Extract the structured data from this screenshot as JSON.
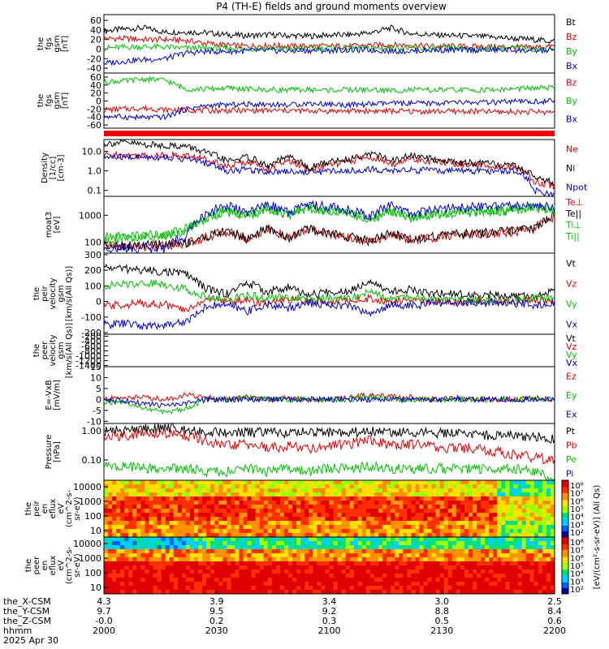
{
  "title": "P4 (TH-E) fields and ground moments overview",
  "chart_data": [
    {
      "type": "line",
      "ylabel": [
        "the",
        "fgs",
        "gsm",
        "[nT]"
      ],
      "yticks": [
        "60",
        "40",
        "20",
        "0",
        "-20",
        "-40"
      ],
      "ylim": [
        -50,
        72
      ],
      "series": [
        {
          "name": "Bt",
          "color": "#000000",
          "values": [
            38,
            42,
            44,
            35,
            36,
            34,
            30,
            28,
            30,
            28,
            27,
            29,
            30,
            34,
            44,
            32,
            30,
            28,
            27,
            25,
            22,
            20,
            16
          ]
        },
        {
          "name": "Bz",
          "color": "#e00000",
          "values": [
            22,
            22,
            20,
            20,
            18,
            12,
            8,
            6,
            8,
            6,
            6,
            6,
            6,
            8,
            9,
            8,
            6,
            6,
            5,
            5,
            4,
            4,
            6
          ]
        },
        {
          "name": "By",
          "color": "#00c000",
          "values": [
            2,
            4,
            5,
            4,
            2,
            2,
            2,
            0,
            2,
            0,
            2,
            2,
            2,
            2,
            2,
            2,
            0,
            2,
            0,
            2,
            2,
            0,
            2
          ]
        },
        {
          "name": "Bx",
          "color": "#0000d0",
          "values": [
            -30,
            -25,
            -22,
            -20,
            -8,
            -5,
            -5,
            -4,
            -3,
            -4,
            -3,
            -3,
            -2,
            -2,
            -4,
            -4,
            -2,
            -2,
            -2,
            -2,
            -2,
            -4,
            -2
          ]
        }
      ]
    },
    {
      "type": "line",
      "ylabel": [
        "the",
        "fgs",
        "gsm",
        "[nT]"
      ],
      "yticks": [
        "60",
        "40",
        "20",
        "0",
        "-20",
        "-40",
        "-60"
      ],
      "ylim": [
        -68,
        70
      ],
      "series": [
        {
          "name": "Bz",
          "color": "#e00000",
          "values": [
            -22,
            -20,
            -18,
            -22,
            -22,
            -24,
            -24,
            -24,
            -24,
            -24,
            -25,
            -25,
            -25,
            -25,
            -25,
            -26,
            -26,
            -26,
            -26,
            -27,
            -27,
            -27,
            -28
          ]
        },
        {
          "name": "By",
          "color": "#00c000",
          "values": [
            48,
            50,
            55,
            52,
            30,
            30,
            32,
            30,
            28,
            28,
            28,
            27,
            28,
            28,
            26,
            28,
            27,
            28,
            27,
            28,
            30,
            32,
            33
          ]
        },
        {
          "name": "Bx",
          "color": "#0000d0",
          "values": [
            -38,
            -40,
            -42,
            -40,
            -20,
            -12,
            -10,
            -8,
            -8,
            -10,
            -6,
            -8,
            -10,
            -8,
            -6,
            -6,
            -6,
            -4,
            -4,
            -4,
            -2,
            -2,
            0
          ]
        }
      ]
    },
    {
      "type": "line",
      "log": true,
      "ylabel": [
        "Density",
        "[1/cc]",
        "[cm-3]"
      ],
      "yticks": [
        "10.0",
        "1.0",
        "0.1"
      ],
      "ylim": [
        0.05,
        40
      ],
      "series": [
        {
          "name": "Ne",
          "color": "#e00000",
          "values": [
            6.5,
            6.5,
            6,
            6.5,
            6,
            4,
            1.5,
            3,
            1.2,
            3,
            1,
            2,
            3,
            5,
            2,
            4,
            3,
            2.5,
            2,
            1.8,
            1.5,
            0.3,
            0.15
          ]
        },
        {
          "name": "Ni",
          "color": "#000000",
          "values": [
            25,
            28,
            22,
            20,
            18,
            8,
            3,
            5,
            1.5,
            5,
            1.2,
            3,
            4,
            8,
            3,
            6,
            4,
            3,
            2.5,
            2.2,
            1.8,
            0.5,
            0.2
          ]
        },
        {
          "name": "Npot",
          "color": "#0000d0",
          "values": [
            5,
            5,
            5,
            5,
            4,
            2.5,
            1,
            1.2,
            0.9,
            1,
            0.8,
            1,
            1,
            1.2,
            1,
            1.1,
            1,
            1,
            1,
            1,
            1,
            0.1,
            0.05
          ]
        }
      ]
    },
    {
      "type": "line",
      "log": true,
      "ylabel": [
        "moat3",
        "[eV]"
      ],
      "yticks": [
        "1000",
        "100"
      ],
      "ylim": [
        40,
        5000
      ],
      "series": [
        {
          "name": "Te⊥",
          "color": "#e00000",
          "values": [
            80,
            70,
            70,
            80,
            90,
            150,
            250,
            120,
            300,
            130,
            300,
            200,
            150,
            100,
            200,
            120,
            150,
            180,
            200,
            220,
            250,
            300,
            900
          ]
        },
        {
          "name": "Te||",
          "color": "#000000",
          "values": [
            85,
            75,
            75,
            85,
            95,
            160,
            260,
            130,
            310,
            140,
            310,
            210,
            160,
            110,
            210,
            130,
            160,
            190,
            210,
            230,
            260,
            320,
            950
          ]
        },
        {
          "name": "Ti⊥",
          "color": "#00c000",
          "values": [
            150,
            170,
            190,
            200,
            300,
            800,
            1500,
            900,
            1800,
            1000,
            2000,
            1500,
            1200,
            700,
            1500,
            900,
            1100,
            1300,
            1400,
            1500,
            1600,
            2000,
            1500
          ]
        },
        {
          "name": "Ti||",
          "color": "#00c000",
          "values": [
            120,
            140,
            160,
            170,
            250,
            700,
            1400,
            800,
            1700,
            900,
            1900,
            1400,
            1100,
            600,
            1400,
            800,
            1000,
            1200,
            1300,
            1400,
            1500,
            1900,
            1400
          ]
        },
        {
          "name": "",
          "color": "#0000d0",
          "values": [
            60,
            60,
            60,
            60,
            150,
            1000,
            2300,
            1100,
            2500,
            1200,
            2600,
            2000,
            1500,
            900,
            2200,
            1100,
            1500,
            1800,
            2000,
            2200,
            2300,
            2500,
            2000
          ]
        }
      ]
    },
    {
      "type": "line",
      "ylabel": [
        "the",
        "peir",
        "velocity",
        "gsm",
        "[km/s(All Qs)]"
      ],
      "yticks": [
        "300",
        "200",
        "100",
        "0",
        "-100",
        "-200"
      ],
      "ylim": [
        -210,
        310
      ],
      "series": [
        {
          "name": "Vt",
          "color": "#000000",
          "values": [
            220,
            210,
            200,
            190,
            180,
            80,
            50,
            120,
            60,
            90,
            40,
            60,
            70,
            140,
            60,
            80,
            50,
            50,
            40,
            40,
            30,
            40,
            60
          ]
        },
        {
          "name": "Vz",
          "color": "#e00000",
          "values": [
            -30,
            -20,
            -10,
            -20,
            -60,
            20,
            0,
            10,
            -20,
            10,
            0,
            0,
            10,
            20,
            0,
            10,
            0,
            0,
            0,
            0,
            0,
            10,
            0
          ]
        },
        {
          "name": "Vy",
          "color": "#00c000",
          "values": [
            100,
            110,
            120,
            110,
            80,
            30,
            10,
            40,
            20,
            30,
            10,
            20,
            20,
            60,
            20,
            30,
            10,
            10,
            10,
            10,
            10,
            20,
            20
          ]
        },
        {
          "name": "Vx",
          "color": "#0000d0",
          "values": [
            -150,
            -140,
            -160,
            -150,
            -130,
            -30,
            -20,
            -60,
            -20,
            -40,
            -10,
            -20,
            -30,
            -80,
            -20,
            -30,
            -10,
            -10,
            -10,
            -10,
            -10,
            -20,
            -20
          ]
        }
      ]
    },
    {
      "type": "line",
      "ylabel": [
        "the",
        "peer",
        "velocity",
        "gsm",
        "[km/s(All Qs)]"
      ],
      "yticks": [
        "-200",
        "-400",
        "-600",
        "-800",
        "-1000",
        "-1200",
        "-1400"
      ],
      "ylim": [
        -1450,
        -120
      ],
      "series": [
        {
          "name": "Vt",
          "color": "#000000",
          "values": []
        },
        {
          "name": "Vz",
          "color": "#e00000",
          "values": []
        },
        {
          "name": "Vy",
          "color": "#00c000",
          "values": []
        },
        {
          "name": "Vx",
          "color": "#0000d0",
          "values": []
        }
      ]
    },
    {
      "type": "line",
      "ylabel": [
        "E=-VxB",
        "[mV/m]"
      ],
      "yticks": [
        "15",
        "10",
        "5",
        "0",
        "-5",
        "-10"
      ],
      "ylim": [
        -11,
        15
      ],
      "series": [
        {
          "name": "Ez",
          "color": "#e00000",
          "values": [
            0,
            1,
            1,
            0,
            2,
            1,
            0,
            1,
            0,
            1,
            0,
            0,
            1,
            2,
            1,
            1,
            0,
            1,
            0,
            0,
            0,
            1,
            0
          ]
        },
        {
          "name": "Ey",
          "color": "#00c000",
          "values": [
            -1,
            -2,
            -4,
            -6,
            -4,
            0,
            0,
            1,
            0,
            0,
            0,
            0,
            0,
            1,
            0,
            0,
            0,
            0,
            0,
            0,
            0,
            0,
            0
          ]
        },
        {
          "name": "Ex",
          "color": "#0000d0",
          "values": [
            0,
            -1,
            -2,
            -3,
            -2,
            0,
            0,
            0,
            0,
            0,
            0,
            0,
            0,
            0,
            0,
            0,
            0,
            0,
            0,
            0,
            0,
            0,
            0
          ]
        }
      ]
    },
    {
      "type": "line",
      "log": true,
      "ylabel": [
        "Pressure",
        "[nPa]"
      ],
      "yticks": [
        "1.00",
        "0.10"
      ],
      "ylim": [
        0.02,
        1.8
      ],
      "series": [
        {
          "name": "Pt",
          "color": "#000000",
          "values": [
            1.0,
            1.0,
            1.2,
            1.3,
            1.2,
            0.9,
            0.9,
            0.85,
            0.9,
            0.85,
            0.9,
            0.9,
            0.9,
            1.0,
            0.9,
            0.9,
            0.85,
            0.8,
            0.75,
            0.7,
            0.65,
            0.6,
            0.55
          ]
        },
        {
          "name": "Pb",
          "color": "#e00000",
          "values": [
            0.6,
            0.7,
            0.8,
            0.8,
            0.7,
            0.4,
            0.3,
            0.35,
            0.25,
            0.3,
            0.25,
            0.3,
            0.35,
            0.5,
            0.3,
            0.35,
            0.3,
            0.25,
            0.25,
            0.2,
            0.15,
            0.12,
            0.1
          ]
        },
        {
          "name": "Pe",
          "color": "#00c000",
          "values": [
            0.06,
            0.06,
            0.05,
            0.05,
            0.05,
            0.04,
            0.04,
            0.05,
            0.04,
            0.05,
            0.04,
            0.05,
            0.05,
            0.06,
            0.05,
            0.05,
            0.05,
            0.05,
            0.05,
            0.05,
            0.05,
            0.04,
            0.02
          ]
        },
        {
          "name": "Pi",
          "color": "#0000d0",
          "values": []
        }
      ]
    },
    {
      "type": "heatmap",
      "ylabel": [
        "the",
        "peir",
        "en",
        "eflux",
        "eV",
        "(cm^2-s-",
        "sr-eV)"
      ],
      "yticks": [
        "10000",
        "1000",
        "100",
        "10"
      ]
    },
    {
      "type": "heatmap",
      "ylabel": [
        "the",
        "peer",
        "en",
        "eflux",
        "eV",
        "(cm^2-s-",
        "sr-eV)"
      ],
      "yticks": [
        "10000",
        "1000",
        "100",
        "10"
      ]
    }
  ],
  "colorbar": {
    "ticks": [
      "10⁸",
      "10⁷",
      "10⁶",
      "10⁵",
      "10⁴",
      "10³",
      "10²"
    ],
    "label": "[eV/(cm²-s-sr-eV)] (All Qs)"
  },
  "xaxis": {
    "ticks": [
      {
        "x": "2000",
        "x_csm": "4.3",
        "y_csm": "9.7",
        "z_csm": "-0.0"
      },
      {
        "x": "2030",
        "x_csm": "3.9",
        "y_csm": "9.5",
        "z_csm": "0.2"
      },
      {
        "x": "2100",
        "x_csm": "3.4",
        "y_csm": "9.2",
        "z_csm": "0.3"
      },
      {
        "x": "2130",
        "x_csm": "3.0",
        "y_csm": "8.8",
        "z_csm": "0.5"
      },
      {
        "x": "2200",
        "x_csm": "2.5",
        "y_csm": "8.4",
        "z_csm": "0.6"
      }
    ],
    "row_labels": [
      "the_X-CSM",
      "the_Y-CSM",
      "the_Z-CSM",
      "hhmm",
      "2025 Apr 30"
    ]
  }
}
